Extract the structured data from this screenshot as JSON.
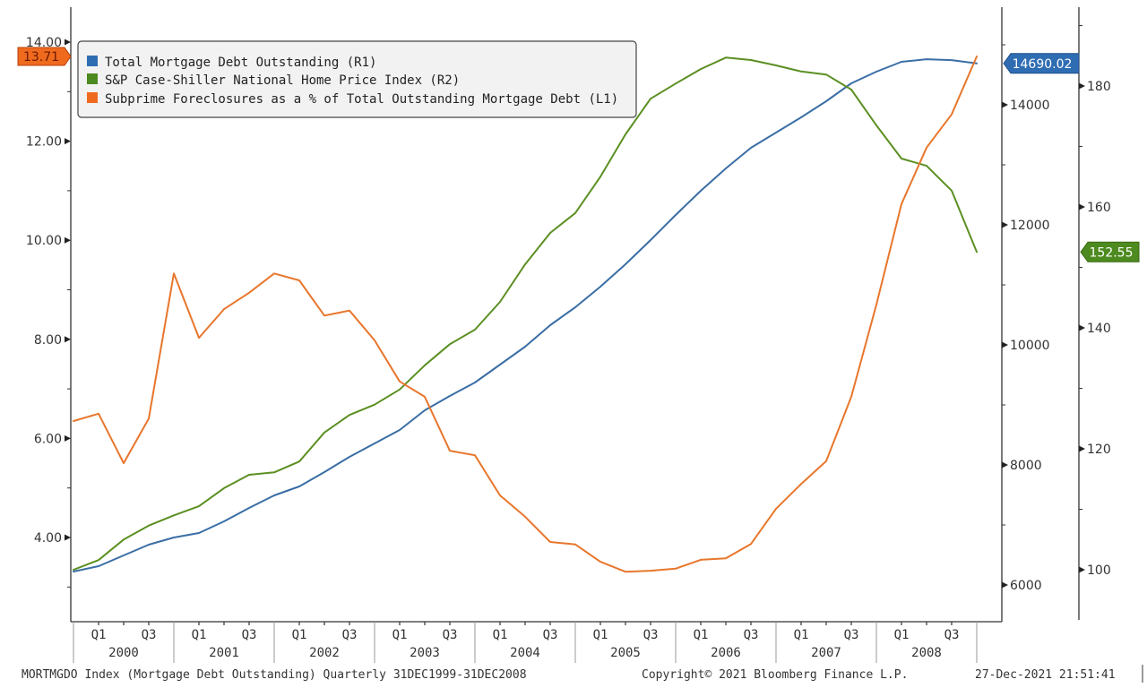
{
  "chart_data": {
    "type": "line",
    "title": "",
    "x": [
      "Q4 1999",
      "Q1 2000",
      "Q2 2000",
      "Q3 2000",
      "Q4 2000",
      "Q1 2001",
      "Q2 2001",
      "Q3 2001",
      "Q4 2001",
      "Q1 2002",
      "Q2 2002",
      "Q3 2002",
      "Q4 2002",
      "Q1 2003",
      "Q2 2003",
      "Q3 2003",
      "Q4 2003",
      "Q1 2004",
      "Q2 2004",
      "Q3 2004",
      "Q4 2004",
      "Q1 2005",
      "Q2 2005",
      "Q3 2005",
      "Q4 2005",
      "Q1 2006",
      "Q2 2006",
      "Q3 2006",
      "Q4 2006",
      "Q1 2007",
      "Q2 2007",
      "Q3 2007",
      "Q4 2007",
      "Q1 2008",
      "Q2 2008",
      "Q3 2008",
      "Q4 2008"
    ],
    "x_axis": {
      "quarter_labels": [
        "Q1",
        "Q3"
      ],
      "years": [
        "2000",
        "2001",
        "2002",
        "2003",
        "2004",
        "2005",
        "2006",
        "2007",
        "2008"
      ]
    },
    "axes": {
      "L1": {
        "ylim": [
          2.6,
          14.9
        ],
        "ticks": [
          4,
          6,
          8,
          10,
          12,
          14
        ],
        "tick_labels": [
          "4.00",
          "6.00",
          "8.00",
          "10.00",
          "12.00",
          "14.00"
        ],
        "minor": [
          3,
          5,
          7,
          9,
          11,
          13
        ]
      },
      "R1": {
        "ylim": [
          5400,
          15600
        ],
        "ticks": [
          6000,
          8000,
          10000,
          12000,
          14000
        ],
        "tick_labels": [
          "6000",
          "8000",
          "10000",
          "12000",
          "14000"
        ],
        "minor": [
          7000,
          9000,
          11000,
          13000,
          15000
        ]
      },
      "R2": {
        "ylim": [
          91,
          193
        ],
        "ticks": [
          100,
          120,
          140,
          160,
          180
        ],
        "tick_labels": [
          "100",
          "120",
          "140",
          "160",
          "180"
        ],
        "minor": [
          110,
          130,
          150,
          170,
          190
        ]
      }
    },
    "series": [
      {
        "name": "Total Mortgage Debt Outstanding (R1)",
        "axis": "R1",
        "color": "#3a6ea5",
        "last_value_label": "14690.02",
        "values": [
          6224,
          6313,
          6493,
          6672,
          6791,
          6866,
          7060,
          7284,
          7493,
          7642,
          7881,
          8134,
          8358,
          8582,
          8910,
          9149,
          9373,
          9672,
          9970,
          10328,
          10627,
          10970,
          11343,
          11746,
          12164,
          12567,
          12940,
          13284,
          13537,
          13791,
          14060,
          14358,
          14552,
          14716,
          14760,
          14745,
          14690.02
        ]
      },
      {
        "name": "S&P Case-Shiller National Home Price Index (R2)",
        "axis": "R2",
        "color": "#5b8f22",
        "last_value_label": "152.55",
        "values": [
          100.0,
          101.6,
          105.0,
          107.3,
          109.0,
          110.5,
          113.5,
          115.7,
          116.1,
          117.9,
          122.7,
          125.6,
          127.3,
          129.8,
          133.8,
          137.3,
          139.7,
          144.3,
          150.5,
          155.7,
          159.0,
          165.0,
          172.0,
          177.9,
          180.4,
          182.8,
          184.7,
          184.3,
          183.4,
          182.4,
          181.9,
          179.4,
          173.5,
          168.0,
          166.8,
          162.7,
          152.55
        ]
      },
      {
        "name": "Subprime Foreclosures as a % of Total Outstanding Mortgage Debt (L1)",
        "axis": "L1",
        "color": "#e8762c",
        "last_value_label": "13.71",
        "values": [
          6.35,
          6.5,
          5.5,
          6.4,
          9.33,
          8.03,
          8.61,
          8.94,
          9.33,
          9.19,
          8.48,
          8.58,
          7.98,
          7.15,
          6.84,
          5.75,
          5.66,
          4.85,
          4.42,
          3.91,
          3.86,
          3.51,
          3.31,
          3.33,
          3.37,
          3.55,
          3.58,
          3.87,
          4.58,
          5.08,
          5.54,
          6.84,
          8.7,
          10.73,
          11.87,
          12.54,
          13.71
        ]
      }
    ],
    "legend_position": "top-left",
    "grid": false
  },
  "footer": {
    "source": "MORTMGDO Index (Mortgage Debt Outstanding)  Quarterly 31DEC1999-31DEC2008",
    "copyright": "Copyright© 2021 Bloomberg Finance L.P.",
    "timestamp": "27-Dec-2021 21:51:41"
  }
}
